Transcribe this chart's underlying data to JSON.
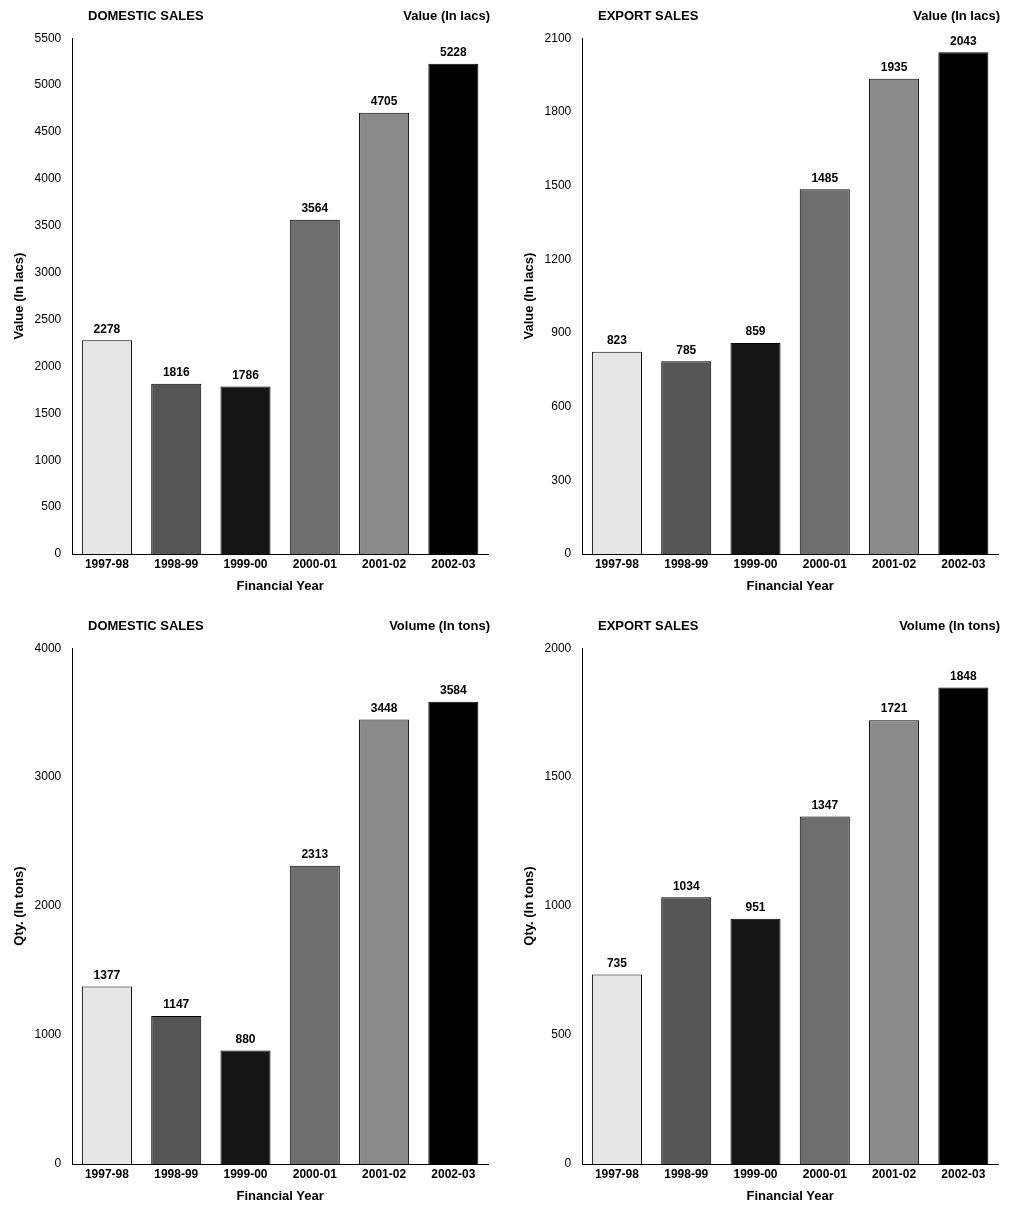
{
  "chart_data": [
    {
      "type": "bar",
      "title": "DOMESTIC SALES",
      "subtitle": "Value (In lacs)",
      "xlabel": "Financial Year",
      "ylabel": "Value (In lacs)",
      "categories": [
        "1997-98",
        "1998-99",
        "1999-00",
        "2000-01",
        "2001-02",
        "2002-03"
      ],
      "values": [
        2278,
        1816,
        1786,
        3564,
        4705,
        5228
      ],
      "colors": [
        "#e6e6e6",
        "#555555",
        "#151515",
        "#6e6e6e",
        "#8a8a8a",
        "#000000"
      ],
      "ylim": [
        0,
        5500
      ],
      "yticks": [
        0,
        500,
        1000,
        1500,
        2000,
        2500,
        3000,
        3500,
        4000,
        4500,
        5000,
        5500
      ],
      "grid": false,
      "data_labels": true
    },
    {
      "type": "bar",
      "title": "EXPORT SALES",
      "subtitle": "Value (In lacs)",
      "xlabel": "Financial Year",
      "ylabel": "Value (In lacs)",
      "categories": [
        "1997-98",
        "1998-99",
        "1999-00",
        "2000-01",
        "2001-02",
        "2002-03"
      ],
      "values": [
        823,
        785,
        859,
        1485,
        1935,
        2043
      ],
      "colors": [
        "#e6e6e6",
        "#555555",
        "#151515",
        "#6e6e6e",
        "#8a8a8a",
        "#000000"
      ],
      "ylim": [
        0,
        2100
      ],
      "yticks": [
        0,
        300,
        600,
        900,
        1200,
        1500,
        1800,
        2100
      ],
      "grid": false,
      "data_labels": true
    },
    {
      "type": "bar",
      "title": "DOMESTIC SALES",
      "subtitle": "Volume (In tons)",
      "xlabel": "Financial Year",
      "ylabel": "Qty. (In tons)",
      "categories": [
        "1997-98",
        "1998-99",
        "1999-00",
        "2000-01",
        "2001-02",
        "2002-03"
      ],
      "values": [
        1377,
        1147,
        880,
        2313,
        3448,
        3584
      ],
      "colors": [
        "#e6e6e6",
        "#555555",
        "#151515",
        "#6e6e6e",
        "#8a8a8a",
        "#000000"
      ],
      "ylim": [
        0,
        4000
      ],
      "yticks": [
        0,
        1000,
        2000,
        3000,
        4000
      ],
      "grid": false,
      "data_labels": true
    },
    {
      "type": "bar",
      "title": "EXPORT SALES",
      "subtitle": "Volume (In tons)",
      "xlabel": "Financial Year",
      "ylabel": "Qty. (In tons)",
      "categories": [
        "1997-98",
        "1998-99",
        "1999-00",
        "2000-01",
        "2001-02",
        "2002-03"
      ],
      "values": [
        735,
        1034,
        951,
        1347,
        1721,
        1848
      ],
      "colors": [
        "#e6e6e6",
        "#555555",
        "#151515",
        "#6e6e6e",
        "#8a8a8a",
        "#000000"
      ],
      "ylim": [
        0,
        2000
      ],
      "yticks": [
        0,
        500,
        1000,
        1500,
        2000
      ],
      "grid": false,
      "data_labels": true
    }
  ]
}
